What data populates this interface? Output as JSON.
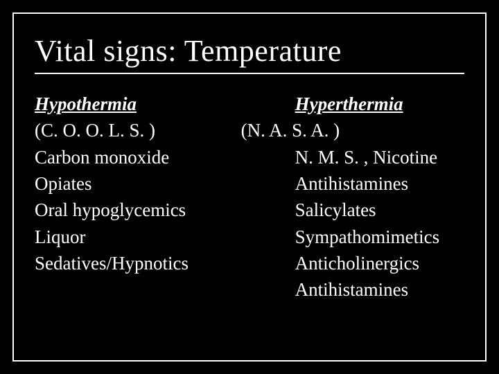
{
  "title": "Vital signs: Temperature",
  "left": {
    "heading": "Hypothermia",
    "acronym": "(C. O. O. L. S. )",
    "items": [
      "Carbon monoxide",
      "Opiates",
      "Oral hypoglycemics",
      "Liquor",
      "Sedatives/Hypnotics"
    ]
  },
  "right": {
    "heading": "Hyperthermia",
    "acronym": "(N. A. S. A. )",
    "items": [
      "N. M. S. , Nicotine",
      "Antihistamines",
      "Salicylates",
      "Sympathomimetics",
      "Anticholinergics",
      "Antihistamines"
    ]
  },
  "colors": {
    "background": "#000000",
    "text": "#ffffff",
    "border": "#ffffff"
  },
  "typography": {
    "title_fontsize": 44,
    "body_fontsize": 27,
    "font_family": "Georgia, Times New Roman, serif"
  }
}
